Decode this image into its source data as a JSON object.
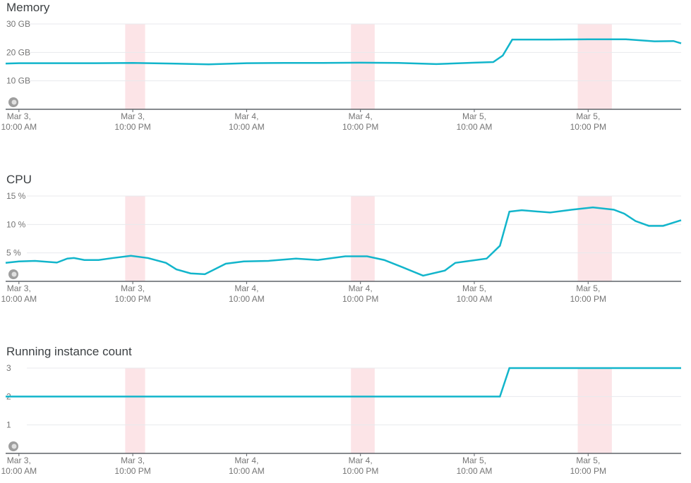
{
  "chart_data": [
    {
      "type": "line",
      "title": "Memory",
      "color": "#12b5cb",
      "x": [
        -1.4,
        0,
        4,
        8,
        12,
        16,
        20,
        24,
        28,
        32,
        36,
        40,
        44,
        48,
        50,
        51,
        52,
        56,
        60,
        64,
        67,
        69,
        69.8
      ],
      "values": [
        16.1,
        16.2,
        16.2,
        16.2,
        16.3,
        16.1,
        15.8,
        16.2,
        16.3,
        16.3,
        16.4,
        16.3,
        15.9,
        16.4,
        16.6,
        18.9,
        24.5,
        24.5,
        24.6,
        24.6,
        23.9,
        24.0,
        23.2
      ],
      "xlim": [
        -1.4,
        69.8
      ],
      "ylim": [
        0,
        30
      ],
      "yticks": [
        {
          "value": 10,
          "label": "10 GB"
        },
        {
          "value": 20,
          "label": "20 GB"
        },
        {
          "value": 30,
          "label": "30 GB"
        }
      ],
      "xticks": [
        {
          "value": 0,
          "label": "Mar 3,\n10:00 AM"
        },
        {
          "value": 12,
          "label": "Mar 3,\n10:00 PM"
        },
        {
          "value": 24,
          "label": "Mar 4,\n10:00 AM"
        },
        {
          "value": 36,
          "label": "Mar 4,\n10:00 PM"
        },
        {
          "value": 48,
          "label": "Mar 5,\n10:00 AM"
        },
        {
          "value": 60,
          "label": "Mar 5,\n10:00 PM"
        }
      ],
      "bands": [
        [
          11.2,
          13.3
        ],
        [
          35.0,
          37.5
        ],
        [
          58.9,
          62.5
        ]
      ],
      "grid": true
    },
    {
      "type": "line",
      "title": "CPU",
      "color": "#12b5cb",
      "x": [
        -1.4,
        0,
        1.7,
        4.0,
        5.1,
        5.8,
        6.9,
        8.4,
        9.9,
        11.8,
        13.6,
        15.5,
        16.6,
        18.1,
        19.6,
        21.8,
        23.7,
        26.3,
        29.2,
        31.5,
        34.4,
        36.7,
        38.5,
        40.4,
        42.6,
        44.9,
        46.0,
        47.1,
        49.3,
        50.7,
        51.7,
        53.0,
        56.0,
        58.3,
        60.5,
        62.7,
        63.8,
        65.0,
        66.4,
        67.9,
        69.8
      ],
      "values": [
        3.25,
        3.5,
        3.6,
        3.3,
        4.0,
        4.1,
        3.75,
        3.75,
        4.1,
        4.5,
        4.1,
        3.25,
        2.1,
        1.4,
        1.25,
        3.1,
        3.5,
        3.6,
        4.0,
        3.75,
        4.4,
        4.4,
        3.75,
        2.5,
        1.0,
        1.9,
        3.25,
        3.5,
        4.0,
        6.25,
        12.25,
        12.5,
        12.1,
        12.6,
        13.0,
        12.6,
        11.9,
        10.6,
        9.75,
        9.75,
        10.75
      ],
      "xlim": [
        -1.4,
        69.8
      ],
      "ylim": [
        0,
        15
      ],
      "yticks": [
        {
          "value": 5,
          "label": "5 %"
        },
        {
          "value": 10,
          "label": "10 %"
        },
        {
          "value": 15,
          "label": "15 %"
        }
      ],
      "xticks": [
        {
          "value": 0,
          "label": "Mar 3,\n10:00 AM"
        },
        {
          "value": 12,
          "label": "Mar 3,\n10:00 PM"
        },
        {
          "value": 24,
          "label": "Mar 4,\n10:00 AM"
        },
        {
          "value": 36,
          "label": "Mar 4,\n10:00 PM"
        },
        {
          "value": 48,
          "label": "Mar 5,\n10:00 AM"
        },
        {
          "value": 60,
          "label": "Mar 5,\n10:00 PM"
        }
      ],
      "bands": [
        [
          11.2,
          13.3
        ],
        [
          35.0,
          37.5
        ],
        [
          58.9,
          62.5
        ]
      ],
      "grid": true
    },
    {
      "type": "line",
      "title": "Running instance count",
      "color": "#12b5cb",
      "x": [
        -1.4,
        50.7,
        51.7,
        69.8
      ],
      "values": [
        2,
        2,
        3,
        3
      ],
      "xlim": [
        -1.4,
        69.8
      ],
      "ylim": [
        0,
        3
      ],
      "yticks": [
        1,
        2,
        3
      ],
      "xticks": [
        {
          "value": 0,
          "label": "Mar 3,\n10:00 AM"
        },
        {
          "value": 12,
          "label": "Mar 3,\n10:00 PM"
        },
        {
          "value": 24,
          "label": "Mar 4,\n10:00 AM"
        },
        {
          "value": 36,
          "label": "Mar 4,\n10:00 PM"
        },
        {
          "value": 48,
          "label": "Mar 5,\n10:00 AM"
        },
        {
          "value": 60,
          "label": "Mar 5,\n10:00 PM"
        }
      ],
      "bands": [
        [
          11.2,
          13.3
        ],
        [
          35.0,
          37.5
        ],
        [
          58.9,
          62.5
        ]
      ],
      "grid": true
    }
  ]
}
